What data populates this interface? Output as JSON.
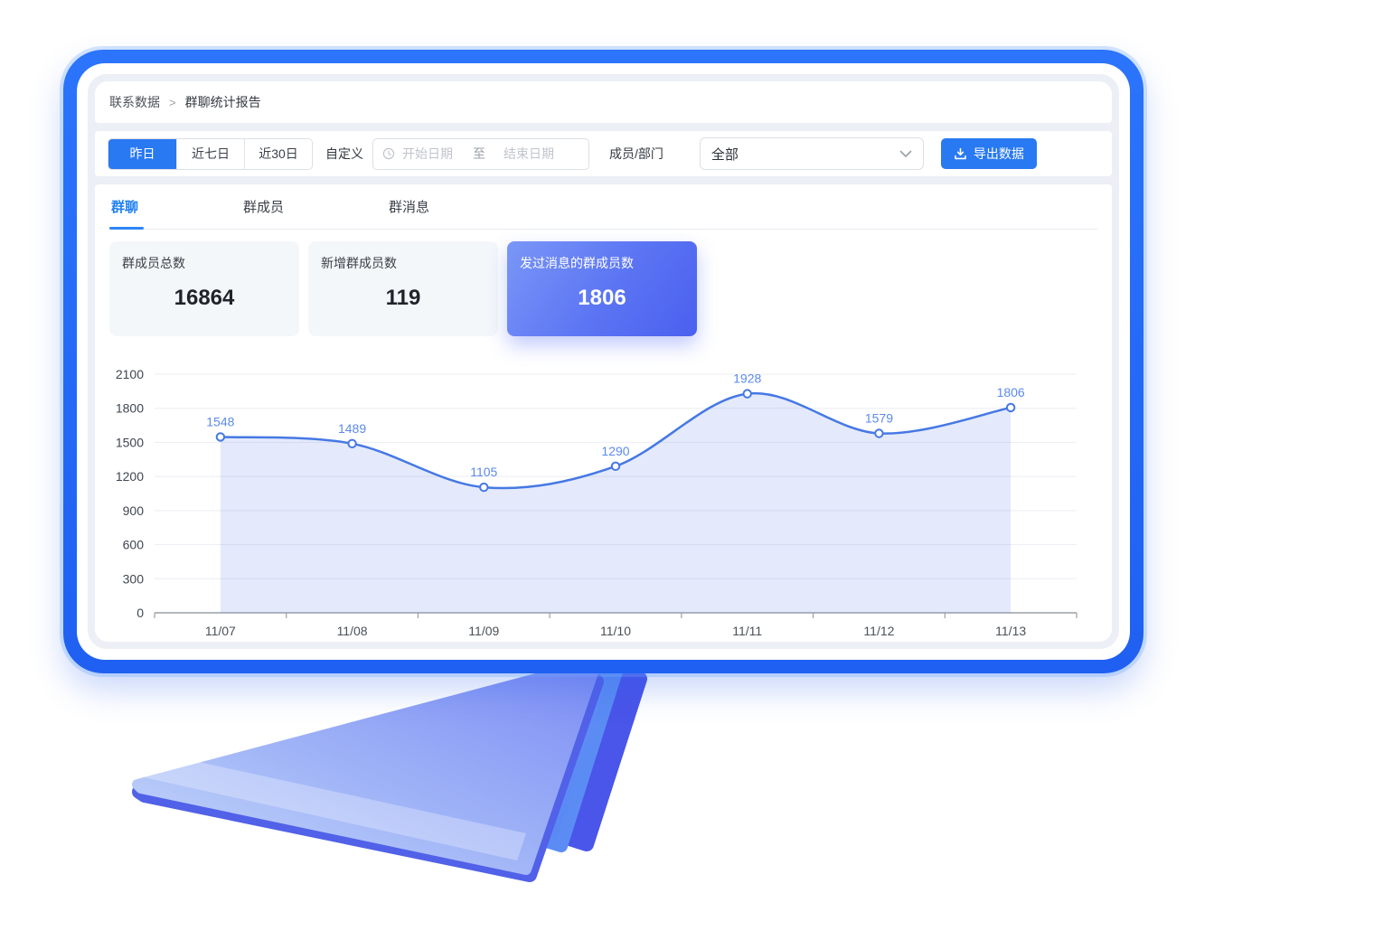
{
  "breadcrumb": {
    "items": [
      "联系数据",
      "群聊统计报告"
    ],
    "separator": ">"
  },
  "filters": {
    "range_buttons": [
      {
        "label": "昨日",
        "active": true
      },
      {
        "label": "近七日",
        "active": false
      },
      {
        "label": "近30日",
        "active": false
      }
    ],
    "custom_label": "自定义",
    "date_range": {
      "start_placeholder": "开始日期",
      "separator": "至",
      "end_placeholder": "结束日期"
    },
    "member_label": "成员/部门",
    "member_select_value": "全部",
    "export_label": "导出数据"
  },
  "tabs": [
    {
      "label": "群聊",
      "active": true
    },
    {
      "label": "群成员",
      "active": false
    },
    {
      "label": "群消息",
      "active": false
    }
  ],
  "stats": [
    {
      "label": "群成员总数",
      "value": "16864",
      "highlight": false
    },
    {
      "label": "新增群成员数",
      "value": "119",
      "highlight": false
    },
    {
      "label": "发过消息的群成员数",
      "value": "1806",
      "highlight": true
    }
  ],
  "chart_data": {
    "type": "area",
    "title": "",
    "x": [
      "11/07",
      "11/08",
      "11/09",
      "11/10",
      "11/11",
      "11/12",
      "11/13"
    ],
    "values": [
      1548,
      1489,
      1105,
      1290,
      1928,
      1579,
      1806
    ],
    "ylim": [
      0,
      2100
    ],
    "ytick_step": 300,
    "grid": true,
    "legend": "none",
    "smooth": true,
    "line_color": "#4678e4",
    "area_color": "rgba(86,123,233,0.16)",
    "point_label_color": "#5d8aec",
    "axis_label_color": "#3f4650",
    "x_label_color": "#4a5158",
    "grid_color": "#eceef3",
    "axis_line_color": "#9aa0a6"
  },
  "colors": {
    "accent": "#2979f2",
    "frame_blue": "#2267f2",
    "tab_active": "#2080f0",
    "panel_gray": "#eceff5"
  }
}
